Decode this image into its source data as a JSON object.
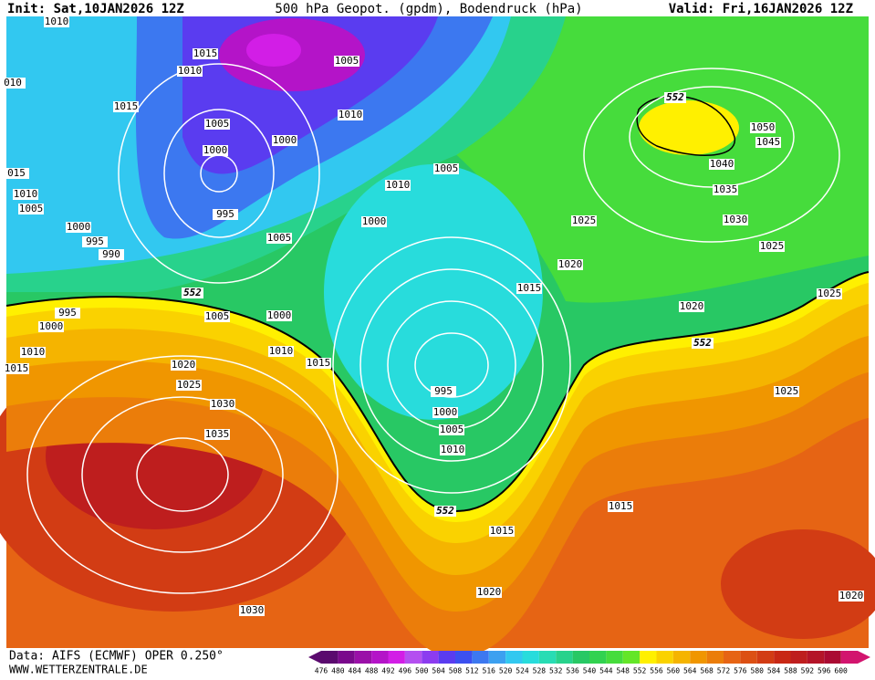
{
  "header": {
    "init": "Init: Sat,10JAN2026 12Z",
    "title": "500 hPa Geopot. (gpdm), Bodendruck (hPa)",
    "valid": "Valid: Fri,16JAN2026 12Z"
  },
  "isobar_labels": [
    "1010",
    "1015",
    "1010",
    "010",
    "1015",
    "1005",
    "1000",
    "1000",
    "1005",
    "1010",
    "015",
    "1010",
    "1005",
    "995",
    "1000",
    "995",
    "990",
    "1005",
    "1000",
    "1010",
    "1005",
    "1015",
    "1025",
    "1020",
    "1050",
    "1045",
    "1040",
    "1035",
    "1030",
    "1025",
    "1025",
    "1020",
    "1025",
    "995",
    "1000",
    "1005",
    "1000",
    "1010",
    "1015",
    "1010",
    "1015",
    "1020",
    "1025",
    "995",
    "1030",
    "1000",
    "1005",
    "1035",
    "1010",
    "1015",
    "1015",
    "1020",
    "1030",
    "1020"
  ],
  "contour_552_labels": [
    "552",
    "552",
    "552",
    "552"
  ],
  "footer": {
    "source": "Data: AIFS (ECMWF) OPER 0.250°",
    "site": "WWW.WETTERZENTRALE.DE"
  },
  "scale": {
    "labels": [
      476,
      480,
      484,
      488,
      492,
      496,
      500,
      504,
      508,
      512,
      516,
      520,
      524,
      528,
      532,
      536,
      540,
      544,
      548,
      552,
      556,
      560,
      564,
      568,
      572,
      576,
      580,
      584,
      588,
      592,
      596,
      600
    ],
    "colors": [
      "#5a0a6e",
      "#7a0a8c",
      "#9a10a8",
      "#b414c8",
      "#d21ee6",
      "#b450f0",
      "#8c3cf0",
      "#5a3cf0",
      "#3c50f0",
      "#3c78f0",
      "#3ca0f0",
      "#32c8f0",
      "#28dcdc",
      "#28dcb4",
      "#28d28c",
      "#28c864",
      "#32d250",
      "#46dc3c",
      "#64e628",
      "#fff000",
      "#fad200",
      "#f5b400",
      "#f09600",
      "#eb7d0a",
      "#e66414",
      "#dc5014",
      "#d23c14",
      "#c82814",
      "#be1e1e",
      "#b41428",
      "#aa0a32",
      "#d2146e"
    ]
  }
}
